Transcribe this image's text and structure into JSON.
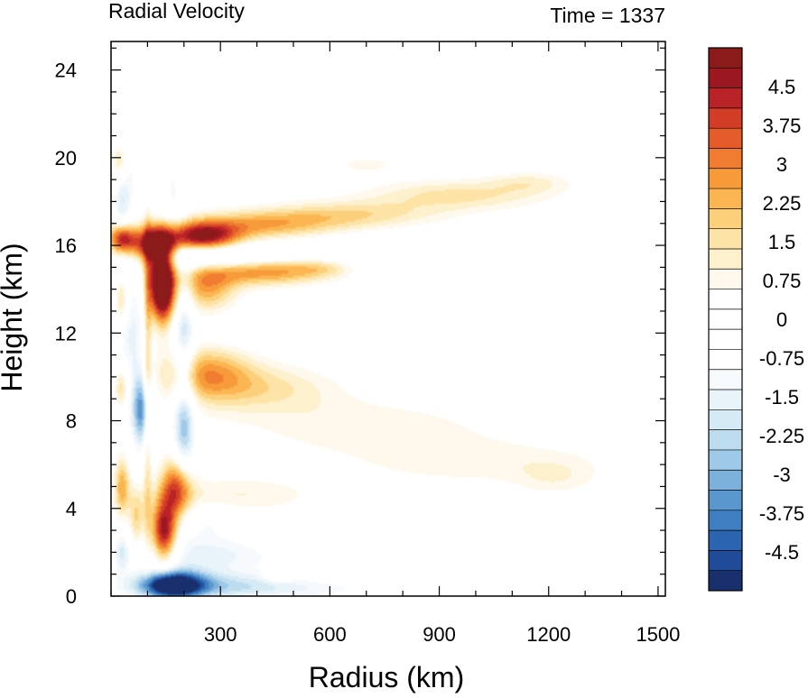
{
  "chart_data": {
    "type": "heatmap",
    "title": "Radial Velocity",
    "subtitle": "Time = 1337",
    "xlabel": "Radius (km)",
    "ylabel": "Height (km)",
    "xlim": [
      0,
      1520
    ],
    "ylim": [
      0,
      25.3
    ],
    "x_ticks": [
      300,
      600,
      900,
      1200,
      1500
    ],
    "y_ticks": [
      0,
      4,
      8,
      12,
      16,
      20,
      24
    ],
    "colorbar": {
      "min": -5.25,
      "max": 5.25,
      "step": 0.375,
      "tick_labels": [
        "4.5",
        "3.75",
        "3",
        "2.25",
        "1.5",
        "0.75",
        "0",
        "-0.75",
        "-1.5",
        "-2.25",
        "-3",
        "-3.75",
        "-4.5"
      ],
      "colors": [
        "#1a2f6e",
        "#1f4b99",
        "#2b65b0",
        "#3e7ec1",
        "#5a97cf",
        "#7cb1dc",
        "#9fc9e8",
        "#bddcf0",
        "#d6eaf6",
        "#e9f4fa",
        "#f6fafd",
        "#ffffff",
        "#ffffff",
        "#ffffff",
        "#ffffff",
        "#fef9ec",
        "#fdf0cc",
        "#fde3a6",
        "#fcd07a",
        "#fbb652",
        "#f79a3a",
        "#ef7c30",
        "#e35c2a",
        "#d23d28",
        "#b92226",
        "#9c1820",
        "#8b1a1a"
      ]
    },
    "features": [
      {
        "r": 140,
        "z": 14.2,
        "sr": 25,
        "sz": 1.2,
        "v": 7.0
      },
      {
        "r": 115,
        "z": 16.0,
        "sr": 45,
        "sz": 0.6,
        "v": 5.0
      },
      {
        "r": 30,
        "z": 16.3,
        "sr": 25,
        "sz": 0.5,
        "v": 4.5
      },
      {
        "r": 250,
        "z": 16.4,
        "sr": 70,
        "sz": 0.45,
        "v": 4.5
      },
      {
        "r": 400,
        "z": 16.9,
        "sr": 150,
        "sz": 0.45,
        "v": 2.2
      },
      {
        "r": 650,
        "z": 17.4,
        "sr": 180,
        "sz": 0.45,
        "v": 1.6
      },
      {
        "r": 950,
        "z": 18.3,
        "sr": 180,
        "sz": 0.5,
        "v": 1.5
      },
      {
        "r": 1150,
        "z": 18.9,
        "sr": 80,
        "sz": 0.35,
        "v": 0.9
      },
      {
        "r": 700,
        "z": 19.7,
        "sr": 80,
        "sz": 0.35,
        "v": 0.7
      },
      {
        "r": 250,
        "z": 15.4,
        "sr": 90,
        "sz": 0.4,
        "v": -2.0
      },
      {
        "r": 480,
        "z": 15.6,
        "sr": 200,
        "sz": 0.35,
        "v": -1.1
      },
      {
        "r": 780,
        "z": 16.0,
        "sr": 150,
        "sz": 0.3,
        "v": -0.7
      },
      {
        "r": 1100,
        "z": 16.3,
        "sr": 100,
        "sz": 0.5,
        "v": -0.5
      },
      {
        "r": 260,
        "z": 14.2,
        "sr": 60,
        "sz": 0.9,
        "v": 2.6
      },
      {
        "r": 420,
        "z": 14.8,
        "sr": 110,
        "sz": 0.45,
        "v": 2.8
      },
      {
        "r": 580,
        "z": 15.0,
        "sr": 60,
        "sz": 0.35,
        "v": 1.2
      },
      {
        "r": 380,
        "z": 12.2,
        "sr": 160,
        "sz": 0.6,
        "v": -0.5
      },
      {
        "r": 260,
        "z": 10.2,
        "sr": 90,
        "sz": 0.9,
        "v": 2.4
      },
      {
        "r": 420,
        "z": 9.5,
        "sr": 150,
        "sz": 0.8,
        "v": 1.4
      },
      {
        "r": 700,
        "z": 7.8,
        "sr": 250,
        "sz": 0.9,
        "v": 0.9
      },
      {
        "r": 1000,
        "z": 6.1,
        "sr": 260,
        "sz": 0.8,
        "v": 0.8
      },
      {
        "r": 1220,
        "z": 5.4,
        "sr": 80,
        "sz": 0.6,
        "v": 0.7
      },
      {
        "r": 180,
        "z": 5.0,
        "sr": 30,
        "sz": 1.0,
        "v": 3.6
      },
      {
        "r": 145,
        "z": 2.9,
        "sr": 25,
        "sz": 1.0,
        "v": 5.0
      },
      {
        "r": 340,
        "z": 4.6,
        "sr": 160,
        "sz": 0.6,
        "v": 1.0
      },
      {
        "r": 170,
        "z": 0.5,
        "sr": 60,
        "sz": 0.45,
        "v": -5.5
      },
      {
        "r": 300,
        "z": 0.5,
        "sr": 180,
        "sz": 0.45,
        "v": -1.8
      },
      {
        "r": 700,
        "z": 0.3,
        "sr": 400,
        "sz": 0.3,
        "v": -0.7
      },
      {
        "r": 220,
        "z": 2.0,
        "sr": 130,
        "sz": 0.8,
        "v": -1.2
      },
      {
        "r": 270,
        "z": 3.5,
        "sr": 60,
        "sz": 0.5,
        "v": -0.8
      },
      {
        "r": 85,
        "z": 8.5,
        "sr": 20,
        "sz": 1.2,
        "v": -3.5
      },
      {
        "r": 55,
        "z": 12.0,
        "sr": 30,
        "sz": 2.5,
        "v": -1.5
      },
      {
        "r": 200,
        "z": 12.0,
        "sr": 20,
        "sz": 2.0,
        "v": -2.0
      },
      {
        "r": 200,
        "z": 7.5,
        "sr": 22,
        "sz": 1.5,
        "v": -2.8
      },
      {
        "r": 30,
        "z": 18.5,
        "sr": 18,
        "sz": 1.8,
        "v": -1.8
      },
      {
        "r": 25,
        "z": 19.8,
        "sr": 15,
        "sz": 0.7,
        "v": 2.6
      },
      {
        "r": 70,
        "z": 20.0,
        "sr": 25,
        "sz": 1.5,
        "v": -0.8
      },
      {
        "r": 170,
        "z": 18.5,
        "sr": 25,
        "sz": 2.0,
        "v": -1.0
      },
      {
        "r": 30,
        "z": 13.5,
        "sr": 14,
        "sz": 0.8,
        "v": 2.2
      },
      {
        "r": 30,
        "z": 9.5,
        "sr": 14,
        "sz": 0.7,
        "v": 2.0
      },
      {
        "r": 30,
        "z": 5.0,
        "sr": 15,
        "sz": 1.0,
        "v": 2.4
      },
      {
        "r": 30,
        "z": 2.0,
        "sr": 15,
        "sz": 0.7,
        "v": -1.5
      },
      {
        "r": 70,
        "z": 3.5,
        "sr": 15,
        "sz": 1.0,
        "v": 1.8
      },
      {
        "r": 100,
        "z": 10.0,
        "sr": 8,
        "sz": 5.0,
        "v": 2.0
      },
      {
        "r": 360,
        "z": 1.8,
        "sr": 120,
        "sz": 0.5,
        "v": -0.6
      },
      {
        "r": 460,
        "z": 0.9,
        "sr": 25,
        "sz": 0.2,
        "v": 1.2
      },
      {
        "r": 900,
        "z": 11.0,
        "sr": 200,
        "sz": 1.5,
        "v": -0.3
      },
      {
        "r": 1400,
        "z": 19.0,
        "sr": 40,
        "sz": 0.4,
        "v": -0.4
      }
    ]
  }
}
